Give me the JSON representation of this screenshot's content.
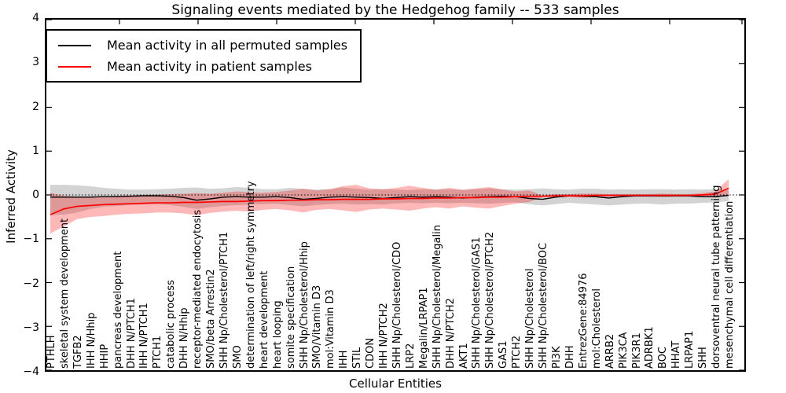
{
  "title": "Signaling events mediated by the Hedgehog family -- 533 samples",
  "axes": {
    "ylabel": "Inferred Activity",
    "xlabel": "Cellular Entities",
    "yticks": [
      "4",
      "3",
      "2",
      "1",
      "0",
      "−1",
      "−2",
      "−3",
      "−4"
    ],
    "ylim": [
      -4,
      4
    ]
  },
  "legend": {
    "items": [
      {
        "label": "Mean activity in all permuted samples",
        "color": "#000000"
      },
      {
        "label": "Mean activity in patient samples",
        "color": "#ff0000"
      }
    ]
  },
  "colors": {
    "permuted_line": "#000000",
    "patient_line": "#ff0000",
    "permuted_band": "rgba(128,128,128,0.35)",
    "patient_band": "rgba(255,0,0,0.28)",
    "frame": "#000000",
    "background": "#ffffff"
  },
  "chart_data": {
    "type": "line",
    "title": "Signaling events mediated by the Hedgehog family -- 533 samples",
    "xlabel": "Cellular Entities",
    "ylabel": "Inferred Activity",
    "ylim": [
      -4,
      4
    ],
    "grid": false,
    "legend_position": "upper left",
    "zero_line_style": "dotted",
    "categories": [
      "PTHLH",
      "skeletal system development",
      "TGFB2",
      "IHH N/Hhip",
      "HHIP",
      "pancreas development",
      "DHH N/PTCH1",
      "IHH N/PTCH1",
      "PTCH1",
      "catabolic process",
      "DHH N/Hhip",
      "receptor-mediated endocytosis",
      "SMO/beta Arrestin2",
      "SHH Np/Cholesterol/PTCH1",
      "SMO",
      "determination of left/right symmetry",
      "heart development",
      "heart looping",
      "somite specification",
      "SHH Np/Cholesterol/Hhip",
      "SMO/Vitamin D3",
      "mol:Vitamin D3",
      "IHH",
      "STIL",
      "CDON",
      "IHH N/PTCH2",
      "SHH Np/Cholesterol/CDO",
      "LRP2",
      "Megalin/LRPAP1",
      "SHH Np/Cholesterol/Megalin",
      "DHH N/PTCH2",
      "AKT1",
      "SHH Np/Cholesterol/GAS1",
      "SHH Np/Cholesterol/PTCH2",
      "GAS1",
      "PTCH2",
      "SHH Np/Cholesterol",
      "SHH Np/Cholesterol/BOC",
      "PI3K",
      "DHH",
      "EntrezGene:84976",
      "mol:Cholesterol",
      "ARRB2",
      "PIK3CA",
      "PIK3R1",
      "ADRBK1",
      "BOC",
      "HHAT",
      "LRPAP1",
      "SHH",
      "dorsoventral neural tube patterning",
      "mesenchymal cell differentiation"
    ],
    "series": [
      {
        "name": "Mean activity in all permuted samples",
        "color": "#000000",
        "values": [
          -0.05,
          -0.05,
          -0.05,
          -0.05,
          -0.04,
          -0.04,
          -0.03,
          -0.02,
          -0.02,
          -0.03,
          -0.06,
          -0.12,
          -0.09,
          -0.05,
          -0.04,
          -0.05,
          -0.05,
          -0.04,
          -0.06,
          -0.1,
          -0.08,
          -0.05,
          -0.04,
          -0.05,
          -0.06,
          -0.08,
          -0.06,
          -0.04,
          -0.05,
          -0.04,
          -0.05,
          -0.07,
          -0.05,
          -0.04,
          -0.03,
          -0.04,
          -0.08,
          -0.1,
          -0.05,
          -0.02,
          -0.03,
          -0.04,
          -0.07,
          -0.04,
          -0.02,
          -0.02,
          -0.02,
          -0.02,
          -0.02,
          -0.04,
          -0.04,
          -0.01
        ]
      },
      {
        "name": "Mean activity in patient samples",
        "color": "#ff0000",
        "values": [
          -0.45,
          -0.32,
          -0.26,
          -0.24,
          -0.22,
          -0.21,
          -0.2,
          -0.19,
          -0.18,
          -0.18,
          -0.17,
          -0.17,
          -0.16,
          -0.15,
          -0.15,
          -0.14,
          -0.13,
          -0.13,
          -0.12,
          -0.12,
          -0.11,
          -0.11,
          -0.1,
          -0.1,
          -0.1,
          -0.09,
          -0.09,
          -0.08,
          -0.08,
          -0.07,
          -0.07,
          -0.06,
          -0.06,
          -0.05,
          -0.05,
          -0.04,
          -0.03,
          -0.03,
          -0.02,
          -0.02,
          -0.02,
          -0.01,
          -0.01,
          -0.01,
          -0.01,
          -0.01,
          -0.01,
          -0.01,
          -0.01,
          0.0,
          0.02,
          0.15
        ]
      }
    ],
    "bands": [
      {
        "name": "permuted samples band",
        "color": "rgba(128,128,128,0.35)",
        "upper": [
          0.23,
          0.23,
          0.22,
          0.2,
          0.16,
          0.14,
          0.12,
          0.12,
          0.13,
          0.14,
          0.16,
          0.17,
          0.14,
          0.15,
          0.18,
          0.16,
          0.13,
          0.13,
          0.16,
          0.14,
          0.12,
          0.13,
          0.17,
          0.14,
          0.12,
          0.13,
          0.12,
          0.11,
          0.13,
          0.12,
          0.13,
          0.11,
          0.13,
          0.15,
          0.13,
          0.12,
          0.13,
          0.15,
          0.13,
          0.12,
          0.14,
          0.14,
          0.12,
          0.13,
          0.12,
          0.13,
          0.13,
          0.12,
          0.13,
          0.12,
          0.13,
          0.1
        ],
        "lower": [
          -0.45,
          -0.45,
          -0.4,
          -0.32,
          -0.27,
          -0.25,
          -0.23,
          -0.22,
          -0.21,
          -0.23,
          -0.27,
          -0.32,
          -0.28,
          -0.25,
          -0.23,
          -0.22,
          -0.21,
          -0.2,
          -0.23,
          -0.26,
          -0.23,
          -0.21,
          -0.2,
          -0.22,
          -0.21,
          -0.22,
          -0.19,
          -0.18,
          -0.19,
          -0.18,
          -0.19,
          -0.18,
          -0.19,
          -0.2,
          -0.18,
          -0.17,
          -0.21,
          -0.24,
          -0.21,
          -0.18,
          -0.2,
          -0.22,
          -0.24,
          -0.22,
          -0.2,
          -0.2,
          -0.22,
          -0.2,
          -0.2,
          -0.18,
          -0.17,
          -0.14
        ]
      },
      {
        "name": "patient samples band",
        "color": "rgba(255,0,0,0.28)",
        "upper": [
          0.05,
          -0.02,
          -0.04,
          -0.04,
          -0.03,
          -0.02,
          -0.01,
          0.0,
          0.01,
          0.02,
          0.03,
          0.04,
          0.03,
          0.05,
          0.08,
          0.06,
          0.05,
          0.07,
          0.1,
          0.14,
          0.1,
          0.13,
          0.2,
          0.23,
          0.15,
          0.13,
          0.16,
          0.21,
          0.16,
          0.12,
          0.16,
          0.12,
          0.15,
          0.18,
          0.12,
          0.08,
          0.1,
          -0.01,
          0.02,
          0.02,
          0.03,
          0.03,
          0.02,
          0.02,
          0.02,
          0.02,
          0.03,
          0.02,
          0.02,
          0.04,
          0.08,
          0.36
        ],
        "lower": [
          -0.88,
          -0.72,
          -0.55,
          -0.5,
          -0.48,
          -0.45,
          -0.43,
          -0.42,
          -0.4,
          -0.4,
          -0.42,
          -0.46,
          -0.41,
          -0.38,
          -0.36,
          -0.38,
          -0.34,
          -0.32,
          -0.35,
          -0.4,
          -0.34,
          -0.32,
          -0.35,
          -0.39,
          -0.33,
          -0.31,
          -0.33,
          -0.36,
          -0.31,
          -0.28,
          -0.31,
          -0.26,
          -0.29,
          -0.31,
          -0.25,
          -0.2,
          -0.16,
          -0.05,
          -0.05,
          -0.05,
          -0.06,
          -0.05,
          -0.05,
          -0.04,
          -0.04,
          -0.04,
          -0.05,
          -0.04,
          -0.04,
          -0.05,
          -0.06,
          -0.02
        ]
      }
    ]
  }
}
